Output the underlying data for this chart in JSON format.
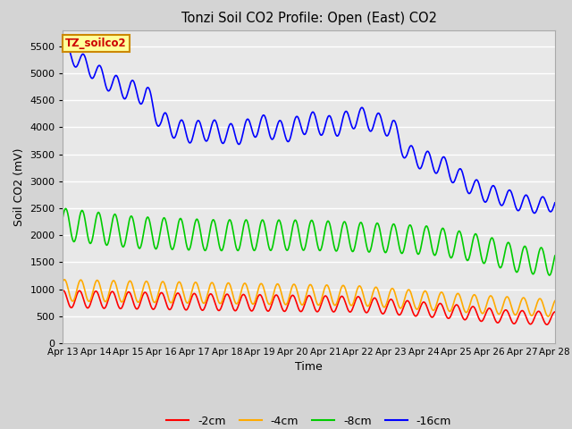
{
  "title": "Tonzi Soil CO2 Profile: Open (East) CO2",
  "xlabel": "Time",
  "ylabel": "Soil CO2 (mV)",
  "ylim": [
    0,
    5800
  ],
  "yticks": [
    0,
    500,
    1000,
    1500,
    2000,
    2500,
    3000,
    3500,
    4000,
    4500,
    5000,
    5500
  ],
  "legend_label": "TZ_soilco2",
  "legend_bbox_facecolor": "#ffff99",
  "legend_bbox_edgecolor": "#cc8800",
  "series_labels": [
    "-2cm",
    "-4cm",
    "-8cm",
    "-16cm"
  ],
  "series_colors": [
    "#ff0000",
    "#ffaa00",
    "#00cc00",
    "#0000ff"
  ],
  "line_width": 1.2,
  "n_points": 720,
  "x_start": 13.0,
  "x_end": 28.0,
  "cycles_per_day": 2.0,
  "xtick_positions": [
    13,
    14,
    15,
    16,
    17,
    18,
    19,
    20,
    21,
    22,
    23,
    24,
    25,
    26,
    27,
    28
  ],
  "xtick_labels": [
    "Apr 13",
    "Apr 14",
    "Apr 15",
    "Apr 16",
    "Apr 17",
    "Apr 18",
    "Apr 19",
    "Apr 20",
    "Apr 21",
    "Apr 22",
    "Apr 23",
    "Apr 24",
    "Apr 25",
    "Apr 26",
    "Apr 27",
    "Apr 28"
  ],
  "fig_facecolor": "#d4d4d4",
  "ax_facecolor": "#e8e8e8",
  "grid_color": "#ffffff"
}
